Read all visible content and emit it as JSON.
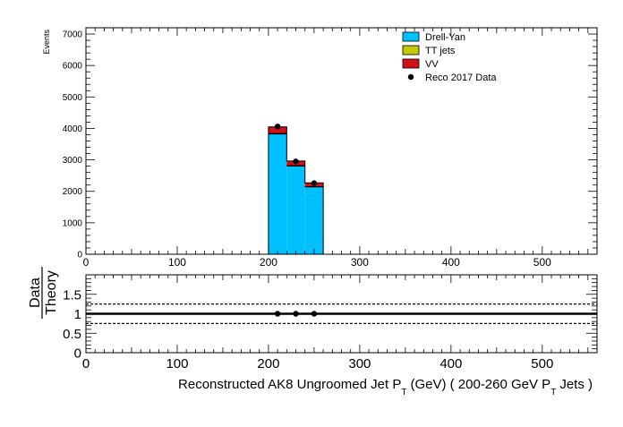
{
  "chart_data": [
    {
      "type": "bar",
      "ylabel": "Events",
      "xlim": [
        0,
        560
      ],
      "ylim": [
        0,
        7200
      ],
      "x_ticks": [
        "0",
        "100",
        "200",
        "300",
        "400",
        "500"
      ],
      "y_ticks": [
        "0",
        "1000",
        "2000",
        "3000",
        "4000",
        "5000",
        "6000",
        "7000"
      ],
      "bin_edges": [
        200,
        220,
        240,
        260
      ],
      "series": [
        {
          "name": "Drell-Yan",
          "color": "#00c0ff",
          "values": [
            3820,
            2800,
            2140
          ]
        },
        {
          "name": "TT jets",
          "color": "#c8c800",
          "values": [
            20,
            15,
            10
          ]
        },
        {
          "name": "VV",
          "color": "#d0101a",
          "values": [
            210,
            150,
            120
          ]
        }
      ],
      "data_points": {
        "name": "Reco 2017 Data",
        "x": [
          210,
          230,
          250
        ],
        "y": [
          4060,
          2950,
          2260
        ]
      },
      "legend": "top-right"
    },
    {
      "type": "scatter",
      "ylabel_top": "Data",
      "ylabel_bottom": "Theory",
      "xlabel_main": "Reconstructed AK8 Ungroomed Jet P",
      "xlabel_sub": "T",
      "xlabel_units": "(GeV) ( 200-260 GeV P",
      "xlabel_sub2": "T",
      "xlabel_tail": "Jets  )",
      "xlim": [
        0,
        560
      ],
      "ylim": [
        0,
        2
      ],
      "x_ticks": [
        "0",
        "100",
        "200",
        "300",
        "400",
        "500"
      ],
      "y_ticks": [
        "0",
        "0.5",
        "1",
        "1.5"
      ],
      "reference_lines": {
        "solid": 1.0,
        "dashed": [
          0.75,
          1.25
        ]
      },
      "points": {
        "x": [
          210,
          230,
          250
        ],
        "y": [
          1.0,
          1.0,
          1.0
        ]
      }
    }
  ]
}
